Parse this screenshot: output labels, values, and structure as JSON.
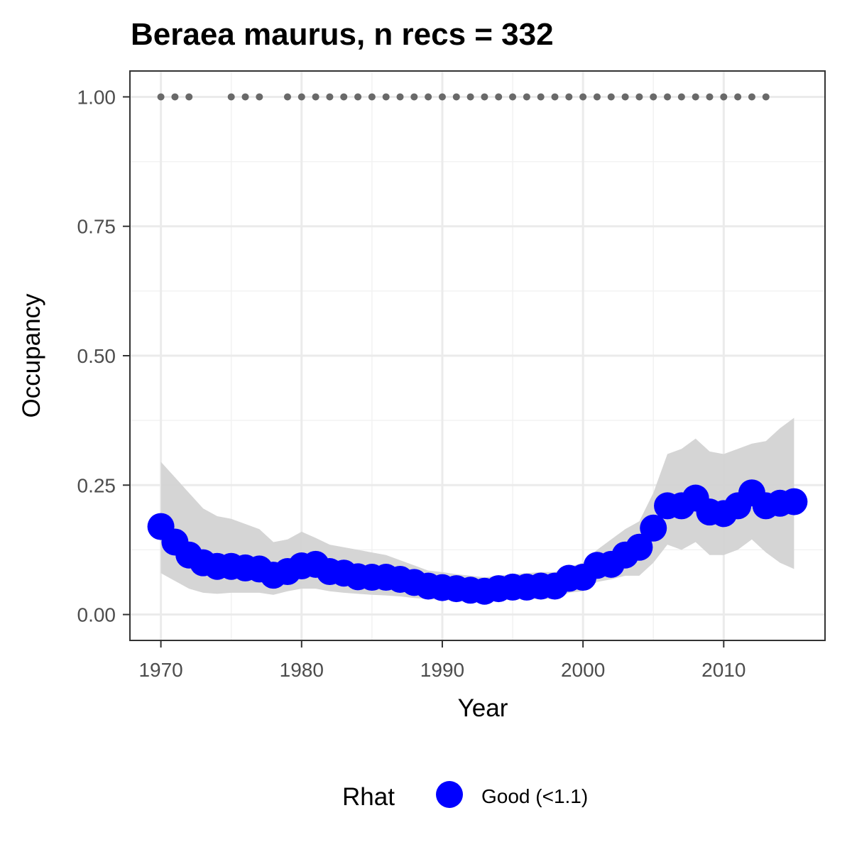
{
  "chart_data": {
    "type": "scatter",
    "title": "Beraea maurus, n recs = 332",
    "xlabel": "Year",
    "ylabel": "Occupancy",
    "xlim": [
      1967.8,
      2017.2
    ],
    "ylim": [
      -0.05,
      1.05
    ],
    "x_ticks": [
      1970,
      1980,
      1990,
      2000,
      2010
    ],
    "y_ticks": [
      0.0,
      0.25,
      0.5,
      0.75,
      1.0
    ],
    "y_tick_labels": [
      "0.00",
      "0.25",
      "0.50",
      "0.75",
      "1.00"
    ],
    "grid": true,
    "legend": {
      "position": "bottom",
      "title": "Rhat",
      "entries": [
        {
          "label": "Good (<1.1)",
          "color": "#0000ff"
        }
      ]
    },
    "series": [
      {
        "role": "occupancy-mean",
        "color": "#0000ff",
        "x": [
          1970,
          1971,
          1972,
          1973,
          1974,
          1975,
          1976,
          1977,
          1978,
          1979,
          1980,
          1981,
          1982,
          1983,
          1984,
          1985,
          1986,
          1987,
          1988,
          1989,
          1990,
          1991,
          1992,
          1993,
          1994,
          1995,
          1996,
          1997,
          1998,
          1999,
          2000,
          2001,
          2002,
          2003,
          2004,
          2005,
          2006,
          2007,
          2008,
          2009,
          2010,
          2011,
          2012,
          2013,
          2014,
          2015
        ],
        "y": [
          0.17,
          0.14,
          0.115,
          0.1,
          0.093,
          0.093,
          0.09,
          0.088,
          0.076,
          0.083,
          0.094,
          0.097,
          0.083,
          0.08,
          0.073,
          0.072,
          0.072,
          0.068,
          0.062,
          0.055,
          0.052,
          0.05,
          0.047,
          0.045,
          0.05,
          0.053,
          0.053,
          0.055,
          0.055,
          0.07,
          0.072,
          0.095,
          0.097,
          0.115,
          0.13,
          0.167,
          0.21,
          0.21,
          0.225,
          0.198,
          0.195,
          0.21,
          0.235,
          0.21,
          0.215,
          0.218
        ]
      },
      {
        "role": "credible-interval",
        "color": "#d3d3d3",
        "x": [
          1970,
          1971,
          1972,
          1973,
          1974,
          1975,
          1976,
          1977,
          1978,
          1979,
          1980,
          1981,
          1982,
          1983,
          1984,
          1985,
          1986,
          1987,
          1988,
          1989,
          1990,
          1991,
          1992,
          1993,
          1994,
          1995,
          1996,
          1997,
          1998,
          1999,
          2000,
          2001,
          2002,
          2003,
          2004,
          2005,
          2006,
          2007,
          2008,
          2009,
          2010,
          2011,
          2012,
          2013,
          2014,
          2015
        ],
        "upper": [
          0.295,
          0.265,
          0.235,
          0.205,
          0.19,
          0.185,
          0.175,
          0.165,
          0.14,
          0.145,
          0.16,
          0.148,
          0.135,
          0.13,
          0.125,
          0.12,
          0.115,
          0.105,
          0.095,
          0.085,
          0.082,
          0.078,
          0.075,
          0.072,
          0.075,
          0.078,
          0.08,
          0.082,
          0.082,
          0.092,
          0.1,
          0.125,
          0.145,
          0.165,
          0.18,
          0.235,
          0.31,
          0.32,
          0.34,
          0.315,
          0.31,
          0.32,
          0.33,
          0.335,
          0.36,
          0.38
        ],
        "lower": [
          0.08,
          0.065,
          0.05,
          0.042,
          0.04,
          0.042,
          0.042,
          0.042,
          0.038,
          0.045,
          0.05,
          0.05,
          0.045,
          0.042,
          0.04,
          0.038,
          0.037,
          0.035,
          0.032,
          0.03,
          0.028,
          0.027,
          0.025,
          0.025,
          0.027,
          0.03,
          0.03,
          0.03,
          0.03,
          0.042,
          0.045,
          0.063,
          0.068,
          0.075,
          0.075,
          0.1,
          0.135,
          0.125,
          0.14,
          0.115,
          0.115,
          0.125,
          0.145,
          0.12,
          0.1,
          0.088
        ]
      },
      {
        "role": "recorded-years",
        "color": "#696969",
        "x": [
          1970,
          1971,
          1972,
          1975,
          1976,
          1977,
          1979,
          1980,
          1981,
          1982,
          1983,
          1984,
          1985,
          1986,
          1987,
          1988,
          1989,
          1990,
          1991,
          1992,
          1993,
          1994,
          1995,
          1996,
          1997,
          1998,
          1999,
          2000,
          2001,
          2002,
          2003,
          2004,
          2005,
          2006,
          2007,
          2008,
          2009,
          2010,
          2011,
          2012,
          2013
        ],
        "y_value": 1.0
      }
    ]
  }
}
